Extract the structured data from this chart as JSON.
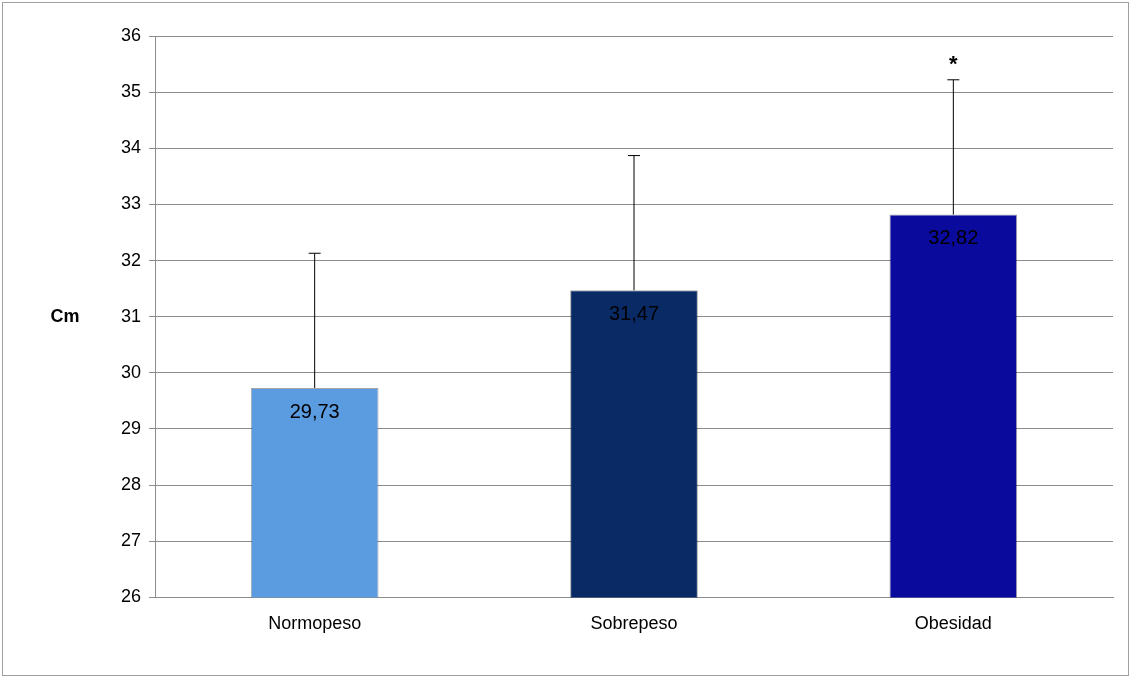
{
  "chart_data": {
    "type": "bar",
    "ylabel": "Cm",
    "categories": [
      "Normopeso",
      "Sobrepeso",
      "Obesidad"
    ],
    "values": [
      29.73,
      31.47,
      32.82
    ],
    "colors": [
      "#5b9be0",
      "#0a2a66",
      "#0a0a9c"
    ],
    "value_labels": [
      "29,73",
      "31,47",
      "32,82"
    ],
    "errors": [
      [
        29.73,
        32.13
      ],
      [
        31.47,
        33.87
      ],
      [
        32.82,
        35.22
      ]
    ],
    "ylim": [
      26,
      36
    ],
    "yticks": [
      26,
      27,
      28,
      29,
      30,
      31,
      32,
      33,
      34,
      35,
      36
    ],
    "grid": "y",
    "legend": false,
    "annotations": [
      "*"
    ]
  }
}
